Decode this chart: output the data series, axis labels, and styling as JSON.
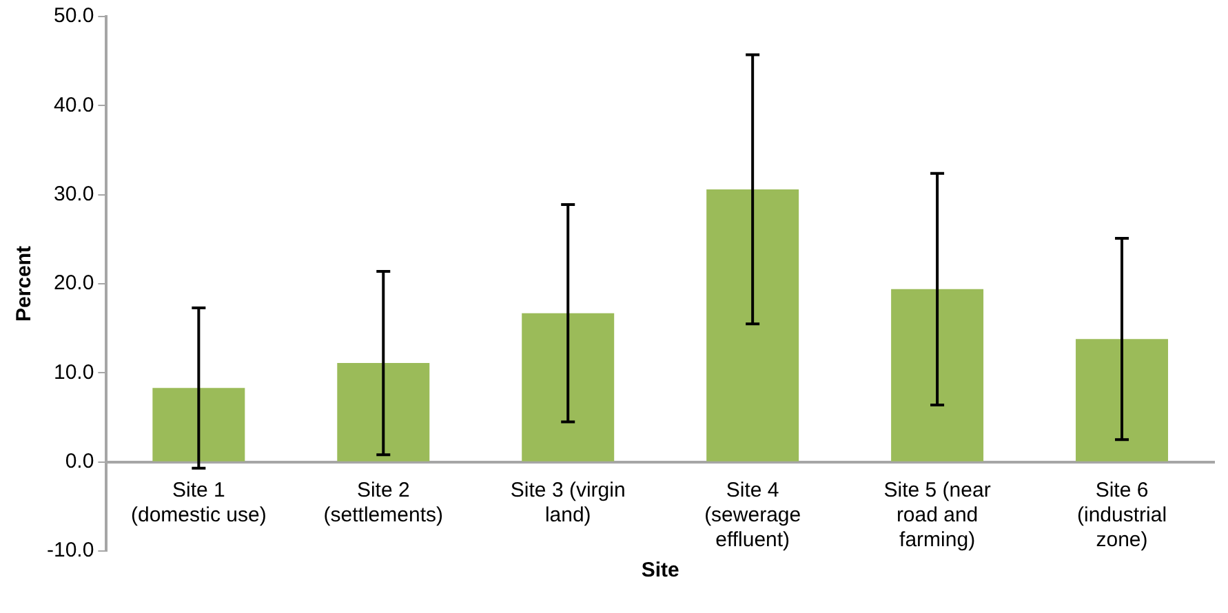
{
  "chart_data": {
    "type": "bar",
    "xlabel": "Site",
    "ylabel": "Percent",
    "categories": [
      "Site 1 (domestic use)",
      "Site 2 (settlements)",
      "Site 3 (virgin land)",
      "Site 4 (sewerage effluent)",
      "Site 5 (near road and farming)",
      "Site 6 (industrial zone)"
    ],
    "values": [
      8.3,
      11.1,
      16.7,
      30.6,
      19.4,
      13.8
    ],
    "errors": [
      9.0,
      10.3,
      12.2,
      15.1,
      13.0,
      11.3
    ],
    "color": "#9bbb59",
    "ylim": [
      -10,
      50
    ],
    "yticks": [
      {
        "value": -10,
        "label": "-10.0"
      },
      {
        "value": 0,
        "label": "0.0"
      },
      {
        "value": 10,
        "label": "10.0"
      },
      {
        "value": 20,
        "label": "20.0"
      },
      {
        "value": 30,
        "label": "30.0"
      },
      {
        "value": 40,
        "label": "40.0"
      },
      {
        "value": 50,
        "label": "50.0"
      }
    ],
    "grid": false,
    "legend": false
  }
}
